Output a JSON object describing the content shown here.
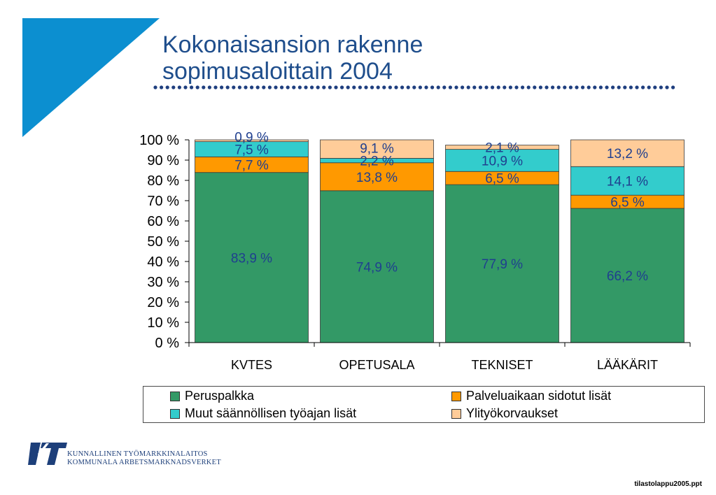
{
  "slide": {
    "title_line1": "Kokonaisansion rakenne",
    "title_line2": "sopimusaloittain 2004",
    "footer": "tilastolappu2005.ppt",
    "colors": {
      "title": "#1f4e8c",
      "accent_blue": "#0c8fd0",
      "dots": "#1f3f7f"
    }
  },
  "logo": {
    "line1": "KUNNALLINEN TYÖMARKKINALAITOS",
    "line2": "KOMMUNALA ARBETSMARKNADSVERKET"
  },
  "chart_data": {
    "type": "bar",
    "stacked": true,
    "categories": [
      "KVTES",
      "OPETUSALA",
      "TEKNISET",
      "LÄÄKÄRIT"
    ],
    "series": [
      {
        "name": "Peruspalkka",
        "color": "#339966",
        "values": [
          83.9,
          74.9,
          77.9,
          66.2
        ],
        "labels": [
          "83,9 %",
          "74,9 %",
          "77,9 %",
          "66,2 %"
        ]
      },
      {
        "name": "Palveluaikaan sidotut lisät",
        "color": "#ff9900",
        "values": [
          7.7,
          13.8,
          6.5,
          6.5
        ],
        "labels": [
          "7,7 %",
          "13,8 %",
          "6,5 %",
          "6,5 %"
        ]
      },
      {
        "name": "Muut säännöllisen työajan lisät",
        "color": "#33cccc",
        "values": [
          7.5,
          2.2,
          10.9,
          14.1
        ],
        "labels": [
          "7,5 %",
          "2,2 %",
          "10,9 %",
          "14,1 %"
        ]
      },
      {
        "name": "Ylityökorvaukset",
        "color": "#ffcc99",
        "values": [
          0.9,
          9.1,
          2.1,
          13.2
        ],
        "labels": [
          "0,9 %",
          "9,1 %",
          "2,1 %",
          "13,2 %"
        ]
      }
    ],
    "y_ticks": [
      "0 %",
      "10 %",
      "20 %",
      "30 %",
      "40 %",
      "50 %",
      "60 %",
      "70 %",
      "80 %",
      "90 %",
      "100 %"
    ],
    "ylim": [
      0,
      100
    ],
    "grid": false,
    "legend_position": "bottom",
    "label_color": "#1f3f8f"
  }
}
